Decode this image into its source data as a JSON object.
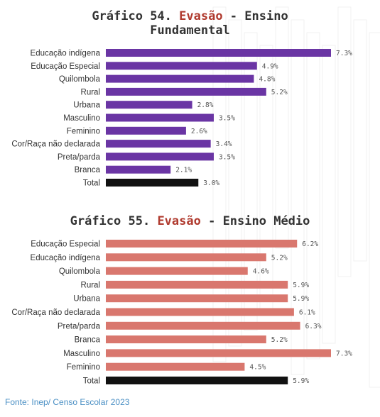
{
  "chart_data": [
    {
      "type": "bar",
      "orientation": "horizontal",
      "title_parts": [
        "Gráfico 54. ",
        "Evasão",
        " - Ensino",
        "Fundamental"
      ],
      "categories": [
        "Educação indígena",
        "Educação Especial",
        "Quilombola",
        "Rural",
        "Urbana",
        "Masculino",
        "Feminino",
        "Cor/Raça não declarada",
        "Preta/parda",
        "Branca",
        "Total"
      ],
      "values": [
        7.3,
        4.9,
        4.8,
        5.2,
        2.8,
        3.5,
        2.6,
        3.4,
        3.5,
        2.1,
        3.0
      ],
      "value_labels": [
        "7.3%",
        "4.9%",
        "4.8%",
        "5.2%",
        "2.8%",
        "3.5%",
        "2.6%",
        "3.4%",
        "3.5%",
        "2.1%",
        "3.0%"
      ],
      "bar_color": "#6a35a4",
      "total_color": "#111111",
      "xlim": [
        0,
        7.3
      ]
    },
    {
      "type": "bar",
      "orientation": "horizontal",
      "title_parts": [
        "Gráfico 55. ",
        "Evasão",
        " - Ensino Médio"
      ],
      "categories": [
        "Educação Especial",
        "Educação indígena",
        "Quilombola",
        "Rural",
        "Urbana",
        "Cor/Raça não declarada",
        "Preta/parda",
        "Branca",
        "Masculino",
        "Feminino",
        "Total"
      ],
      "values": [
        6.2,
        5.2,
        4.6,
        5.9,
        5.9,
        6.1,
        6.3,
        5.2,
        7.3,
        4.5,
        5.9
      ],
      "value_labels": [
        "6.2%",
        "5.2%",
        "4.6%",
        "5.9%",
        "5.9%",
        "6.1%",
        "6.3%",
        "5.2%",
        "7.3%",
        "4.5%",
        "5.9%"
      ],
      "bar_color": "#d9776e",
      "total_color": "#111111",
      "xlim": [
        0,
        7.3
      ]
    }
  ],
  "footer": {
    "source": "Fonte: Inep/ Censo Escolar 2023"
  },
  "colors": {
    "title_accent": "#b03a2e",
    "title_text": "#333333",
    "source_text": "#4a8fc4"
  }
}
